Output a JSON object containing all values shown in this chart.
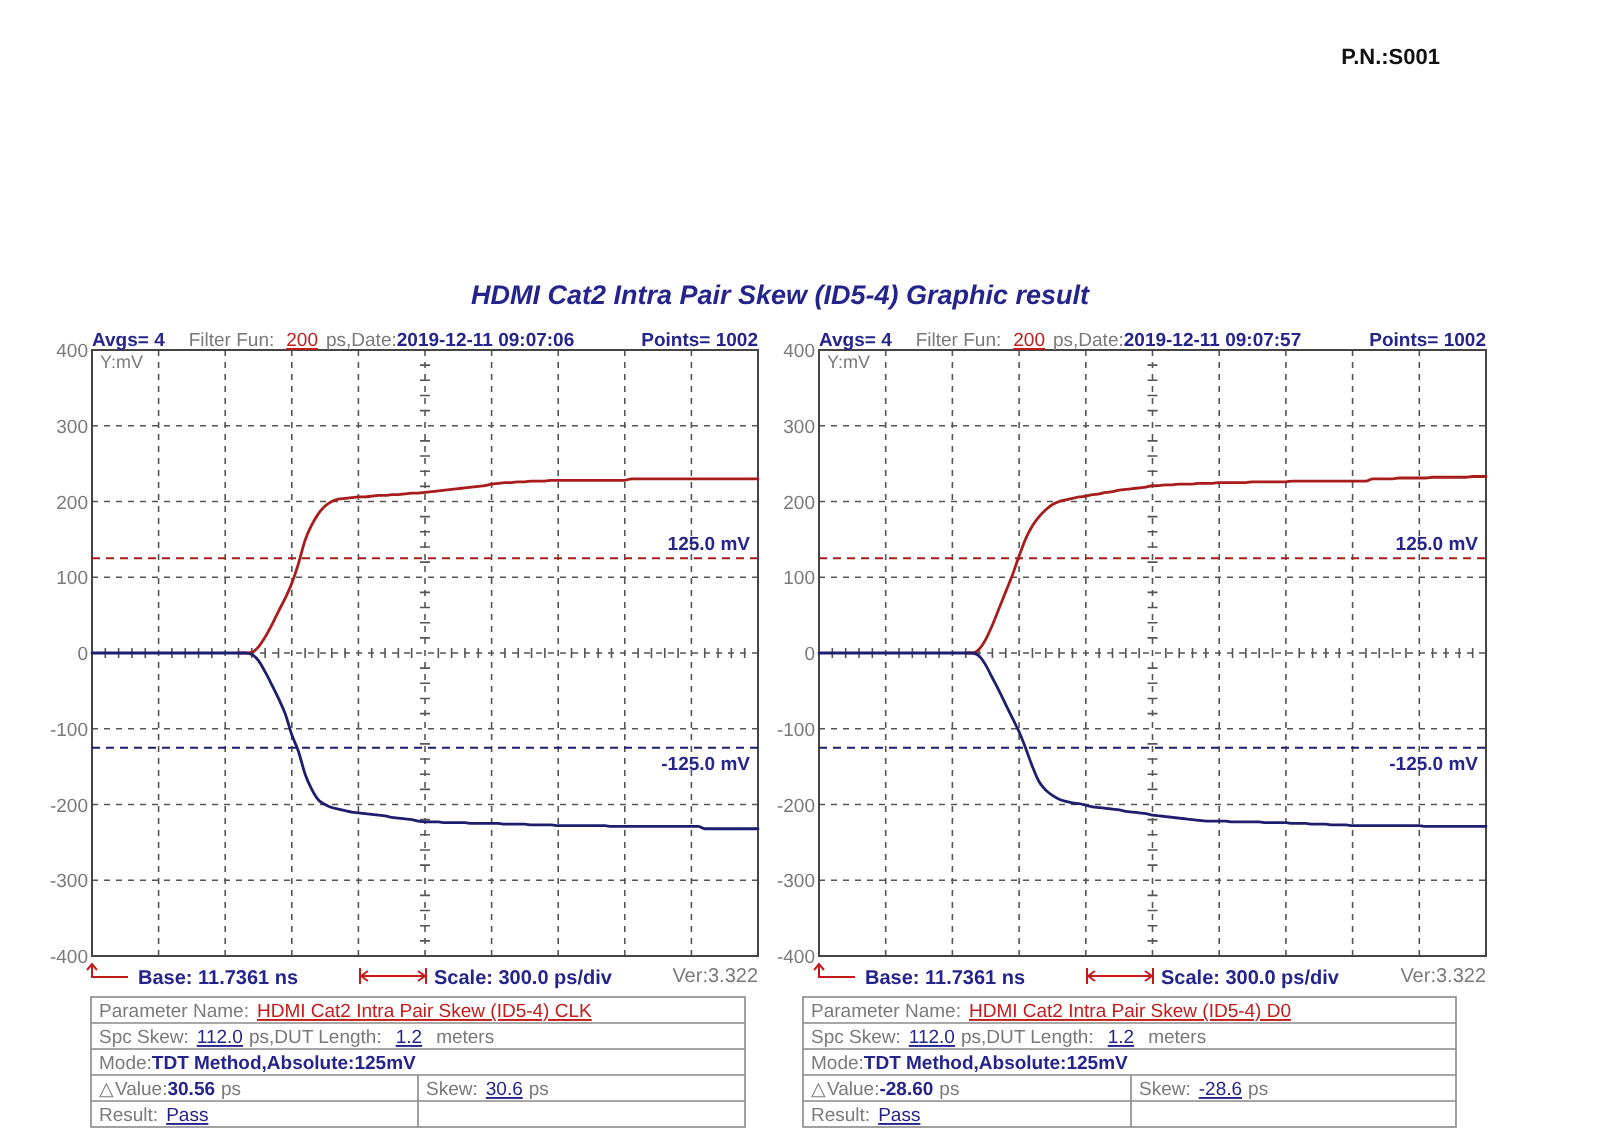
{
  "chart_data": [
    {
      "type": "line",
      "title": "HDMI Cat2 Intra Pair Skew (ID5-4) Graphic result",
      "ylabel": "Y:mV",
      "categories": [
        null,
        null,
        null,
        null,
        null,
        null,
        null,
        null,
        null,
        null,
        null,
        null,
        null,
        null,
        null,
        null,
        null,
        null,
        null,
        null,
        null,
        null,
        null,
        null,
        null,
        null,
        null,
        null,
        null,
        null,
        null,
        null,
        null,
        null,
        null,
        null,
        null,
        null,
        null,
        null,
        null,
        null,
        null,
        null,
        null,
        null,
        null,
        null,
        null,
        null,
        null,
        null,
        null,
        null,
        null,
        null,
        null,
        null,
        null,
        null,
        null,
        null,
        null,
        null,
        null,
        null,
        null,
        null,
        null,
        null,
        null,
        null,
        null,
        null,
        null,
        null,
        null,
        null,
        null,
        null,
        null,
        null,
        null,
        null,
        null,
        null,
        null,
        null,
        null,
        null,
        null,
        null,
        null,
        null,
        null,
        null,
        null,
        null,
        null,
        null,
        null
      ],
      "ylim": [
        -400,
        400
      ],
      "yticks": [
        -400,
        -300,
        -200,
        -100,
        0,
        100,
        200,
        300,
        400
      ],
      "tick_labels": "y",
      "grid": true,
      "line_style": "solid",
      "series": [
        {
          "color": "#a81c1c",
          "values": [
            null,
            null,
            null,
            null,
            null,
            null,
            null,
            null,
            null,
            null,
            null,
            null,
            null,
            null,
            null,
            null,
            null,
            null,
            null,
            null,
            null,
            null,
            0,
            0,
            1,
            8,
            21,
            37,
            55,
            72,
            92,
            118,
            149,
            169,
            184,
            194,
            200,
            203,
            204,
            205,
            206,
            206,
            207,
            208,
            208,
            209,
            209,
            210,
            211,
            211,
            212,
            213,
            214,
            215,
            216,
            217,
            218,
            219,
            220,
            221,
            223,
            224,
            225,
            225,
            226,
            226,
            227,
            227,
            227,
            228,
            228,
            228,
            228,
            228,
            228,
            228,
            228,
            228,
            228,
            228,
            228,
            230,
            230,
            230,
            230,
            230,
            230,
            230,
            230,
            230,
            230,
            230,
            230,
            230,
            230,
            230,
            230,
            230,
            230,
            230,
            230
          ]
        },
        {
          "color": "#1e1e6e",
          "values": [
            0,
            0,
            0,
            0,
            0,
            0,
            0,
            0,
            0,
            0,
            0,
            0,
            0,
            0,
            0,
            0,
            0,
            0,
            0,
            0,
            0,
            0,
            0,
            0,
            -2,
            -10,
            -25,
            -42,
            -60,
            -80,
            -108,
            -130,
            -160,
            -180,
            -194,
            -200,
            -204,
            -206,
            -208,
            -210,
            -211,
            -212,
            -213,
            -214,
            -215,
            -217,
            -218,
            -219,
            -220,
            -222,
            -223,
            -223,
            -223,
            -224,
            -224,
            -224,
            -224,
            -225,
            -225,
            -225,
            -225,
            -225,
            -226,
            -226,
            -226,
            -226,
            -227,
            -227,
            -227,
            -227,
            -228,
            -228,
            -228,
            -228,
            -228,
            -228,
            -228,
            -228,
            -229,
            -229,
            -229,
            -229,
            -229,
            -229,
            -229,
            -229,
            -229,
            -229,
            -229,
            -229,
            -229,
            -229,
            -232,
            -232,
            -232,
            -232,
            -232,
            -232,
            -232,
            -232,
            -232
          ]
        }
      ],
      "ref_lines": [
        {
          "axis": "y",
          "value": 125,
          "label": "125.0 mV",
          "color": "#a81c1c",
          "line_style": "dashed"
        },
        {
          "axis": "y",
          "value": -125,
          "label": "-125.0 mV",
          "color": "#1e1e6e",
          "line_style": "dashed"
        }
      ],
      "annotations": [
        "Avgs= 4",
        "Filter Fun:",
        "200",
        "ps,Date:",
        "2019-12-11 09:07:06",
        "Points= 1002",
        "Base: 11.7361 ns",
        "Scale: 300.0 ps/div",
        "Ver:3.322",
        "Parameter Name:",
        "HDMI Cat2 Intra Pair Skew (ID5-4) CLK",
        "Spc Skew:",
        "112.0",
        "ps,DUT Length:",
        "1.2",
        "meters",
        "Mode:",
        "TDT Method,Absolute:125mV",
        "△Value:",
        "30.56",
        "ps",
        "Skew:",
        "30.6",
        "ps",
        "Result:",
        "Pass",
        "P.N.:S001"
      ]
    },
    {
      "type": "line",
      "ylabel": "Y:mV",
      "categories": [
        null,
        null,
        null,
        null,
        null,
        null,
        null,
        null,
        null,
        null,
        null,
        null,
        null,
        null,
        null,
        null,
        null,
        null,
        null,
        null,
        null,
        null,
        null,
        null,
        null,
        null,
        null,
        null,
        null,
        null,
        null,
        null,
        null,
        null,
        null,
        null,
        null,
        null,
        null,
        null,
        null,
        null,
        null,
        null,
        null,
        null,
        null,
        null,
        null,
        null,
        null,
        null,
        null,
        null,
        null,
        null,
        null,
        null,
        null,
        null,
        null,
        null,
        null,
        null,
        null,
        null,
        null,
        null,
        null,
        null,
        null,
        null,
        null,
        null,
        null,
        null,
        null,
        null,
        null,
        null,
        null,
        null,
        null,
        null,
        null,
        null,
        null,
        null,
        null,
        null,
        null,
        null,
        null,
        null,
        null,
        null,
        null,
        null,
        null,
        null,
        null
      ],
      "ylim": [
        -400,
        400
      ],
      "yticks": [
        -400,
        -300,
        -200,
        -100,
        0,
        100,
        200,
        300,
        400
      ],
      "tick_labels": "y",
      "grid": true,
      "line_style": "solid",
      "series": [
        {
          "color": "#a81c1c",
          "values": [
            null,
            null,
            null,
            null,
            null,
            null,
            null,
            null,
            null,
            null,
            null,
            null,
            null,
            null,
            null,
            null,
            null,
            null,
            null,
            null,
            null,
            null,
            0,
            0,
            5,
            18,
            37,
            59,
            81,
            103,
            128,
            151,
            168,
            180,
            189,
            196,
            200,
            202,
            204,
            206,
            207,
            209,
            210,
            212,
            213,
            215,
            216,
            217,
            218,
            219,
            221,
            221,
            222,
            222,
            223,
            223,
            223,
            224,
            224,
            224,
            225,
            225,
            225,
            225,
            225,
            226,
            226,
            226,
            226,
            226,
            226,
            227,
            227,
            227,
            227,
            227,
            227,
            227,
            227,
            227,
            227,
            227,
            227,
            230,
            230,
            230,
            230,
            231,
            231,
            231,
            231,
            231,
            232,
            232,
            232,
            232,
            232,
            232,
            233,
            233,
            233
          ]
        },
        {
          "color": "#1e1e6e",
          "values": [
            0,
            0,
            0,
            0,
            0,
            0,
            0,
            0,
            0,
            0,
            0,
            0,
            0,
            0,
            0,
            0,
            0,
            0,
            0,
            0,
            0,
            0,
            0,
            0,
            -4,
            -16,
            -33,
            -50,
            -68,
            -86,
            -104,
            -126,
            -150,
            -170,
            -181,
            -188,
            -193,
            -196,
            -198,
            -199,
            -201,
            -203,
            -204,
            -205,
            -206,
            -207,
            -209,
            -210,
            -211,
            -212,
            -214,
            -215,
            -216,
            -217,
            -218,
            -219,
            -220,
            -221,
            -222,
            -222,
            -222,
            -222,
            -223,
            -223,
            -223,
            -223,
            -223,
            -224,
            -224,
            -224,
            -224,
            -225,
            -225,
            -225,
            -226,
            -226,
            -226,
            -227,
            -227,
            -227,
            -228,
            -228,
            -228,
            -228,
            -228,
            -228,
            -228,
            -228,
            -228,
            -228,
            -228,
            -229,
            -229,
            -229,
            -229,
            -229,
            -229,
            -229,
            -229,
            -229,
            -229
          ]
        }
      ],
      "ref_lines": [
        {
          "axis": "y",
          "value": 125,
          "label": "125.0 mV",
          "color": "#a81c1c",
          "line_style": "dashed"
        },
        {
          "axis": "y",
          "value": -125,
          "label": "-125.0 mV",
          "color": "#1e1e6e",
          "line_style": "dashed"
        }
      ],
      "annotations": [
        "Avgs= 4",
        "Filter Fun:",
        "200",
        "ps,Date:",
        "2019-12-11 09:07:57",
        "Points= 1002",
        "Base: 11.7361 ns",
        "Scale: 300.0 ps/div",
        "Ver:3.322",
        "Parameter Name:",
        "HDMI Cat2 Intra Pair Skew (ID5-4) D0",
        "Spc Skew:",
        "112.0",
        "ps,DUT Length:",
        "1.2",
        "meters",
        "Mode:",
        "TDT Method,Absolute:125mV",
        "△Value:",
        "-28.60",
        "ps",
        "Skew:",
        "-28.6",
        "ps",
        "Result:",
        "Pass"
      ]
    }
  ]
}
